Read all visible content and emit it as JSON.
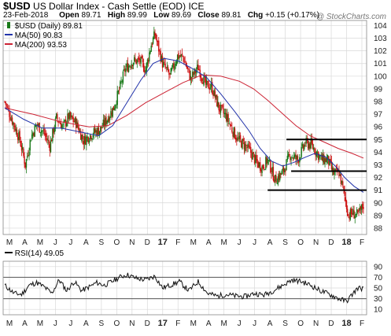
{
  "header": {
    "symbol": "$USD",
    "description": "US Dollar Index - Cash Settle (EOD)",
    "exchange": "ICE",
    "date": "23-Feb-2018",
    "open_label": "Open",
    "open": "89.71",
    "high_label": "High",
    "high": "89.99",
    "low_label": "Low",
    "low": "89.69",
    "close_label": "Close",
    "close": "89.81",
    "chg_label": "Chg",
    "chg": "+0.15 (+0.17%)",
    "watermark": "@ StockCharts.com"
  },
  "legend": {
    "price": "$USD (Daily) 89.81",
    "ma50": "MA(50) 90.83",
    "ma200": "MA(200) 93.53"
  },
  "rsi_legend": "RSI(14) 49.05",
  "colors": {
    "up": "#1a7a1a",
    "down": "#cc1111",
    "ma50": "#2233aa",
    "ma200": "#cc2233",
    "grid": "#d8d8d8",
    "rsi_line": "#111111",
    "rsi_bands": "#555555"
  },
  "chart_data": [
    {
      "type": "candlestick",
      "title": "$USD US Dollar Index - Cash Settle (EOD)",
      "x_tick_labels": [
        "M",
        "A",
        "M",
        "J",
        "J",
        "A",
        "S",
        "O",
        "N",
        "D",
        "17",
        "F",
        "M",
        "A",
        "M",
        "J",
        "J",
        "A",
        "S",
        "O",
        "N",
        "D",
        "18",
        "F"
      ],
      "ylim": [
        87.5,
        104.4
      ],
      "y_ticks": [
        88,
        89,
        90,
        91,
        92,
        93,
        94,
        95,
        96,
        97,
        98,
        99,
        100,
        101,
        102,
        103,
        104
      ],
      "close_path": [
        [
          0,
          98.0
        ],
        [
          8,
          96.5
        ],
        [
          16,
          95.0
        ],
        [
          22,
          93.0
        ],
        [
          28,
          95.2
        ],
        [
          34,
          96.2
        ],
        [
          42,
          95.5
        ],
        [
          48,
          94.5
        ],
        [
          55,
          96.7
        ],
        [
          62,
          96.0
        ],
        [
          68,
          96.8
        ],
        [
          76,
          96.3
        ],
        [
          84,
          94.9
        ],
        [
          90,
          95.3
        ],
        [
          96,
          95.6
        ],
        [
          102,
          95.8
        ],
        [
          108,
          96.5
        ],
        [
          116,
          97.5
        ],
        [
          122,
          98.9
        ],
        [
          128,
          100.5
        ],
        [
          136,
          101.2
        ],
        [
          144,
          101.2
        ],
        [
          150,
          100.5
        ],
        [
          156,
          102.5
        ],
        [
          160,
          103.3
        ],
        [
          168,
          101.0
        ],
        [
          176,
          100.0
        ],
        [
          184,
          101.6
        ],
        [
          190,
          101.5
        ],
        [
          198,
          99.8
        ],
        [
          206,
          100.7
        ],
        [
          214,
          99.3
        ],
        [
          220,
          99.2
        ],
        [
          228,
          97.5
        ],
        [
          236,
          96.8
        ],
        [
          242,
          95.8
        ],
        [
          248,
          95.0
        ],
        [
          256,
          94.5
        ],
        [
          262,
          94.0
        ],
        [
          268,
          93.2
        ],
        [
          274,
          92.8
        ],
        [
          280,
          93.4
        ],
        [
          288,
          91.8
        ],
        [
          296,
          92.4
        ],
        [
          304,
          93.8
        ],
        [
          312,
          93.4
        ],
        [
          320,
          94.7
        ],
        [
          326,
          94.6
        ],
        [
          332,
          94.0
        ],
        [
          338,
          93.4
        ],
        [
          344,
          93.4
        ],
        [
          350,
          92.3
        ],
        [
          356,
          92.4
        ],
        [
          362,
          90.5
        ],
        [
          366,
          89.0
        ],
        [
          370,
          89.2
        ],
        [
          376,
          89.0
        ],
        [
          382,
          89.81
        ]
      ],
      "series": [
        {
          "name": "MA(50)",
          "last": 90.83,
          "points": [
            [
              0,
              97.5
            ],
            [
              20,
              96.6
            ],
            [
              40,
              95.9
            ],
            [
              60,
              95.9
            ],
            [
              80,
              95.6
            ],
            [
              100,
              95.3
            ],
            [
              115,
              96.1
            ],
            [
              130,
              97.9
            ],
            [
              145,
              99.7
            ],
            [
              158,
              101.0
            ],
            [
              170,
              101.4
            ],
            [
              185,
              101.2
            ],
            [
              200,
              100.6
            ],
            [
              215,
              99.9
            ],
            [
              230,
              98.6
            ],
            [
              245,
              97.2
            ],
            [
              260,
              95.7
            ],
            [
              272,
              94.3
            ],
            [
              284,
              93.3
            ],
            [
              296,
              92.9
            ],
            [
              308,
              93.2
            ],
            [
              320,
              93.6
            ],
            [
              330,
              93.9
            ],
            [
              342,
              93.6
            ],
            [
              352,
              92.9
            ],
            [
              362,
              92.0
            ],
            [
              372,
              91.3
            ],
            [
              382,
              90.83
            ]
          ]
        },
        {
          "name": "MA(200)",
          "last": 93.53,
          "points": [
            [
              0,
              97.5
            ],
            [
              30,
              97.0
            ],
            [
              60,
              96.4
            ],
            [
              90,
              96.0
            ],
            [
              110,
              96.1
            ],
            [
              130,
              96.9
            ],
            [
              150,
              97.9
            ],
            [
              170,
              98.7
            ],
            [
              190,
              99.5
            ],
            [
              210,
              100.1
            ],
            [
              230,
              100.0
            ],
            [
              250,
              99.6
            ],
            [
              265,
              99.0
            ],
            [
              280,
              98.1
            ],
            [
              295,
              97.1
            ],
            [
              310,
              96.1
            ],
            [
              325,
              95.3
            ],
            [
              340,
              94.8
            ],
            [
              355,
              94.3
            ],
            [
              370,
              93.9
            ],
            [
              382,
              93.53
            ]
          ]
        }
      ],
      "support_resistance": [
        95.0,
        92.5,
        91.0
      ]
    },
    {
      "type": "line",
      "title": "RSI(14) 49.05",
      "ylim": [
        0,
        100
      ],
      "y_ticks": [
        10,
        30,
        50,
        70,
        90
      ],
      "bands": [
        30,
        70
      ],
      "x_tick_labels": [
        "M",
        "A",
        "M",
        "J",
        "J",
        "A",
        "S",
        "O",
        "N",
        "D",
        "17",
        "F",
        "M",
        "A",
        "M",
        "J",
        "J",
        "A",
        "S",
        "O",
        "N",
        "D",
        "18",
        "F"
      ],
      "path": [
        [
          0,
          55
        ],
        [
          10,
          40
        ],
        [
          18,
          38
        ],
        [
          26,
          55
        ],
        [
          34,
          60
        ],
        [
          42,
          52
        ],
        [
          50,
          40
        ],
        [
          58,
          65
        ],
        [
          66,
          45
        ],
        [
          74,
          62
        ],
        [
          82,
          45
        ],
        [
          90,
          52
        ],
        [
          98,
          60
        ],
        [
          106,
          55
        ],
        [
          114,
          62
        ],
        [
          122,
          70
        ],
        [
          130,
          75
        ],
        [
          140,
          68
        ],
        [
          150,
          65
        ],
        [
          160,
          72
        ],
        [
          168,
          50
        ],
        [
          176,
          55
        ],
        [
          186,
          62
        ],
        [
          196,
          45
        ],
        [
          206,
          62
        ],
        [
          216,
          40
        ],
        [
          226,
          35
        ],
        [
          236,
          38
        ],
        [
          246,
          35
        ],
        [
          256,
          34
        ],
        [
          266,
          40
        ],
        [
          276,
          37
        ],
        [
          286,
          45
        ],
        [
          296,
          55
        ],
        [
          306,
          65
        ],
        [
          316,
          62
        ],
        [
          326,
          55
        ],
        [
          336,
          45
        ],
        [
          346,
          38
        ],
        [
          356,
          30
        ],
        [
          364,
          25
        ],
        [
          370,
          38
        ],
        [
          376,
          50
        ],
        [
          382,
          49.05
        ]
      ]
    }
  ]
}
